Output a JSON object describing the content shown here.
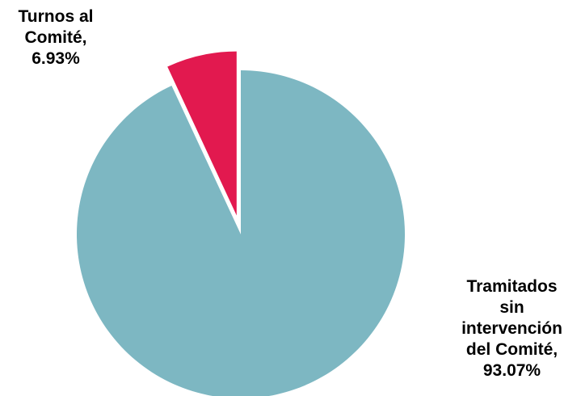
{
  "chart_data": {
    "type": "pie",
    "title": "",
    "slices": [
      {
        "name": "Turnos al Comité",
        "value": 6.93,
        "value_label": "6.93%",
        "label_lines": [
          "Turnos al",
          "Comité,",
          "6.93%"
        ],
        "color": "#E2194F",
        "exploded": true
      },
      {
        "name": "Tramitados sin intervención del Comité",
        "value": 93.07,
        "value_label": "93.07%",
        "label_lines": [
          "Tramitados",
          "sin",
          "intervención",
          "del Comité,",
          "93.07%"
        ],
        "color": "#7DB7C2",
        "exploded": false
      }
    ],
    "start_angle": "12 o'clock",
    "direction": "clockwise",
    "legend": "none",
    "data_labels": "outside"
  }
}
